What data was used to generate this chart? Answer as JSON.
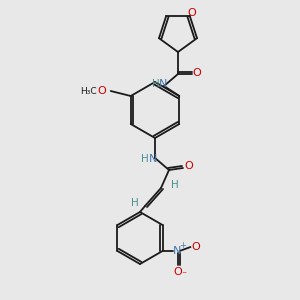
{
  "background_color": "#e8e8e8",
  "bond_color": "#1a1a1a",
  "atom_colors": {
    "O": "#cc0000",
    "N": "#4477aa",
    "C": "#1a1a1a",
    "H": "#4a9090"
  },
  "line_width": 1.3,
  "font_size": 7.5
}
